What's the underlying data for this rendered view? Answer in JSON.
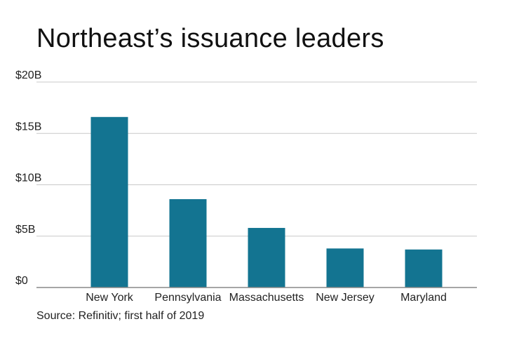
{
  "chart_data": {
    "type": "bar",
    "title": "Northeast’s issuance leaders",
    "categories": [
      "New York",
      "Pennsylvania",
      "Massachusetts",
      "New Jersey",
      "Maryland"
    ],
    "values": [
      16.6,
      8.6,
      5.8,
      3.8,
      3.7
    ],
    "ylim": [
      0,
      20
    ],
    "yticks": [
      0,
      5,
      10,
      15,
      20
    ],
    "ytick_labels": [
      "$0",
      "$5B",
      "$10B",
      "$15B",
      "$20B"
    ],
    "xlabel": "",
    "ylabel": "",
    "grid": true,
    "bar_color": "#137491",
    "grid_color": "#c8c8c8",
    "axis_color": "#888888",
    "source": "Source: Refinitiv; first half of 2019"
  }
}
